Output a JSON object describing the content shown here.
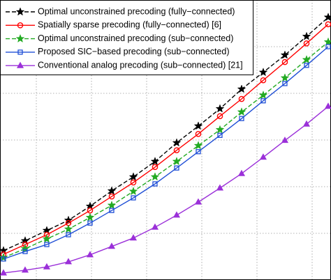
{
  "chart_data": {
    "type": "line",
    "x": [
      0,
      1,
      2,
      3,
      4,
      5,
      6,
      7,
      8,
      9,
      10,
      11,
      12,
      13,
      14,
      15
    ],
    "xlim": [
      -0.16,
      15.13
    ],
    "ylim": [
      0,
      6
    ],
    "grid": true,
    "legend": "upper left",
    "series": [
      {
        "name": "Optimal unconstrained precoding (fully−connected)",
        "color": "#000000",
        "marker": "star",
        "dashed": true,
        "values": [
          0.63,
          0.84,
          1.06,
          1.28,
          1.58,
          1.91,
          2.21,
          2.54,
          2.94,
          3.3,
          3.67,
          4.09,
          4.45,
          4.82,
          5.22,
          5.63
        ]
      },
      {
        "name": "Spatially sparse precoding (fully−connected) [6]",
        "color": "#ff0000",
        "marker": "circle",
        "dashed": false,
        "values": [
          0.55,
          0.76,
          0.97,
          1.22,
          1.49,
          1.79,
          2.09,
          2.42,
          2.78,
          3.13,
          3.51,
          3.88,
          4.28,
          4.67,
          5.07,
          5.48
        ]
      },
      {
        "name": "Optimal unconstrained precoding (sub−connected)",
        "color": "#22aa22",
        "marker": "star",
        "dashed": true,
        "values": [
          0.48,
          0.67,
          0.88,
          1.09,
          1.34,
          1.6,
          1.9,
          2.21,
          2.54,
          2.88,
          3.22,
          3.6,
          3.96,
          4.33,
          4.72,
          5.1
        ]
      },
      {
        "name": "Proposed SIC−based precoding (sub−connected)",
        "color": "#1f4fd6",
        "marker": "square",
        "dashed": false,
        "values": [
          0.45,
          0.61,
          0.76,
          0.97,
          1.22,
          1.49,
          1.76,
          2.06,
          2.4,
          2.75,
          3.1,
          3.46,
          3.84,
          4.21,
          4.6,
          5.0
        ]
      },
      {
        "name": "Conventional analog precoding (sub−connected) [21]",
        "color": "#9b30d9",
        "marker": "triangle",
        "dashed": false,
        "values": [
          0.15,
          0.21,
          0.28,
          0.39,
          0.54,
          0.72,
          0.9,
          1.13,
          1.39,
          1.67,
          1.97,
          2.28,
          2.63,
          2.99,
          3.34,
          3.72
        ]
      }
    ]
  }
}
